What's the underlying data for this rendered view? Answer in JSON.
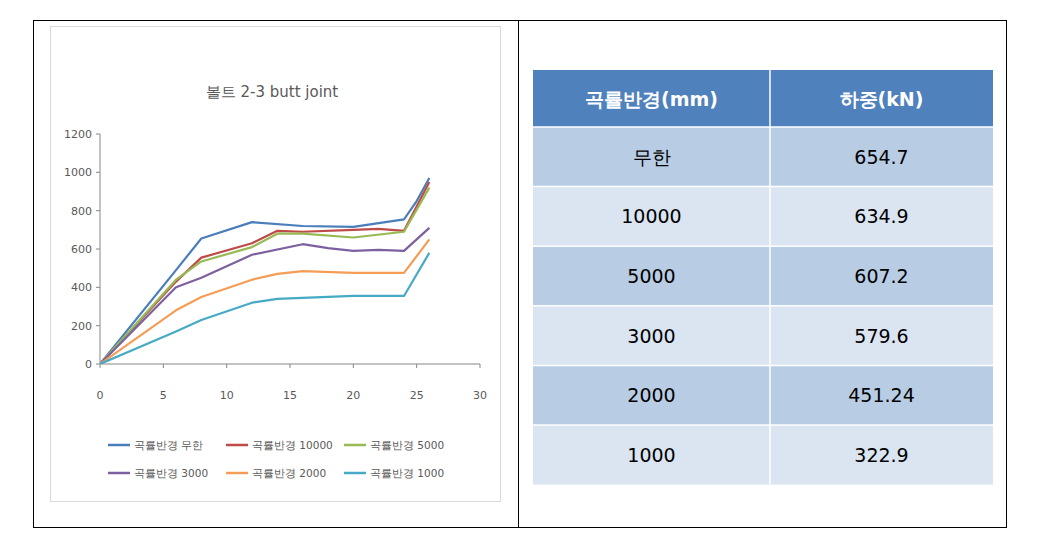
{
  "chart_data": {
    "type": "line",
    "title": "볼트 2-3 butt joint",
    "xlim": [
      0,
      30
    ],
    "xticks": [
      0,
      5,
      10,
      15,
      20,
      25,
      30
    ],
    "ylim": [
      0,
      1200
    ],
    "yticks": [
      0,
      200,
      400,
      600,
      800,
      1000,
      1200
    ],
    "grid": false,
    "legend": "bottom",
    "series": [
      {
        "name": "곡률반경 무한",
        "color": "#4a7ebb",
        "x": [
          0,
          6,
          8,
          12,
          16,
          20,
          24,
          25,
          26
        ],
        "values": [
          0,
          490,
          655,
          740,
          720,
          715,
          755,
          850,
          970
        ]
      },
      {
        "name": "곡률반경 10000",
        "color": "#be4b48",
        "x": [
          0,
          6,
          8,
          12,
          14,
          16,
          20,
          22,
          24,
          26
        ],
        "values": [
          0,
          430,
          555,
          630,
          695,
          690,
          700,
          705,
          695,
          950
        ]
      },
      {
        "name": "곡률반경 5000",
        "color": "#98b954",
        "x": [
          0,
          6,
          8,
          12,
          14,
          16,
          20,
          24,
          26
        ],
        "values": [
          0,
          440,
          535,
          610,
          680,
          680,
          660,
          690,
          920
        ]
      },
      {
        "name": "곡률반경 3000",
        "color": "#7d60a0",
        "x": [
          0,
          6,
          8,
          12,
          16,
          18,
          20,
          22,
          24,
          26
        ],
        "values": [
          0,
          400,
          450,
          570,
          625,
          605,
          590,
          595,
          590,
          710
        ]
      },
      {
        "name": "곡률반경 2000",
        "color": "#f59d56",
        "x": [
          0,
          6,
          8,
          12,
          14,
          16,
          20,
          24,
          26
        ],
        "values": [
          0,
          280,
          350,
          440,
          470,
          485,
          475,
          475,
          650
        ]
      },
      {
        "name": "곡률반경 1000",
        "color": "#46aac5",
        "x": [
          0,
          6,
          8,
          12,
          14,
          16,
          20,
          24,
          26
        ],
        "values": [
          0,
          170,
          230,
          320,
          340,
          345,
          355,
          355,
          580
        ]
      }
    ]
  },
  "table": {
    "header": [
      "곡률반경(mm)",
      "하중(kN)"
    ],
    "rows": [
      [
        "무한",
        654.7
      ],
      [
        10000,
        634.9
      ],
      [
        5000,
        607.2
      ],
      [
        3000,
        579.6
      ],
      [
        2000,
        451.24
      ],
      [
        1000,
        322.9
      ]
    ]
  }
}
